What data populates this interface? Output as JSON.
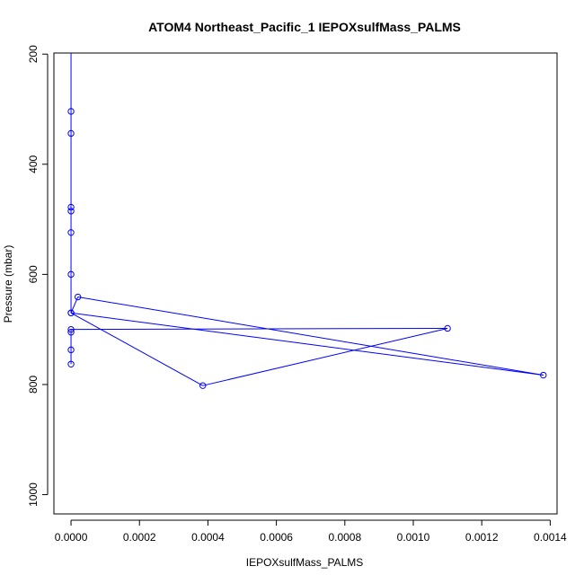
{
  "chart_data": {
    "type": "line",
    "title": "ATOM4 Northeast_Pacific_1 IEPOXsulfMass_PALMS",
    "xlabel": "IEPOXsulfMass_PALMS",
    "ylabel": "Pressure (mbar)",
    "xlim": [
      -5e-05,
      0.00142
    ],
    "ylim": [
      1035,
      198
    ],
    "y_reversed": true,
    "x_ticks": [
      "0.0000",
      "0.0002",
      "0.0004",
      "0.0006",
      "0.0008",
      "0.0010",
      "0.0012",
      "0.0014"
    ],
    "y_ticks": [
      "200",
      "400",
      "600",
      "800",
      "1000"
    ],
    "series_color": "#0000ff",
    "marker": "open-circle",
    "grid": false,
    "series": [
      {
        "points": [
          {
            "x": 0,
            "y": 150
          },
          {
            "x": 0,
            "y": 304
          },
          {
            "x": 0,
            "y": 344
          },
          {
            "x": 0,
            "y": 478
          },
          {
            "x": 0,
            "y": 485
          },
          {
            "x": 0,
            "y": 524
          },
          {
            "x": 0,
            "y": 600
          },
          {
            "x": 0,
            "y": 670
          },
          {
            "x": 2e-05,
            "y": 641
          },
          {
            "x": 0.00138,
            "y": 783
          },
          {
            "x": 0,
            "y": 670
          },
          {
            "x": 0.000385,
            "y": 802
          },
          {
            "x": 0.0011,
            "y": 698
          },
          {
            "x": 0,
            "y": 700
          },
          {
            "x": 0,
            "y": 705
          },
          {
            "x": 0,
            "y": 737
          },
          {
            "x": 0,
            "y": 763
          }
        ]
      }
    ]
  }
}
